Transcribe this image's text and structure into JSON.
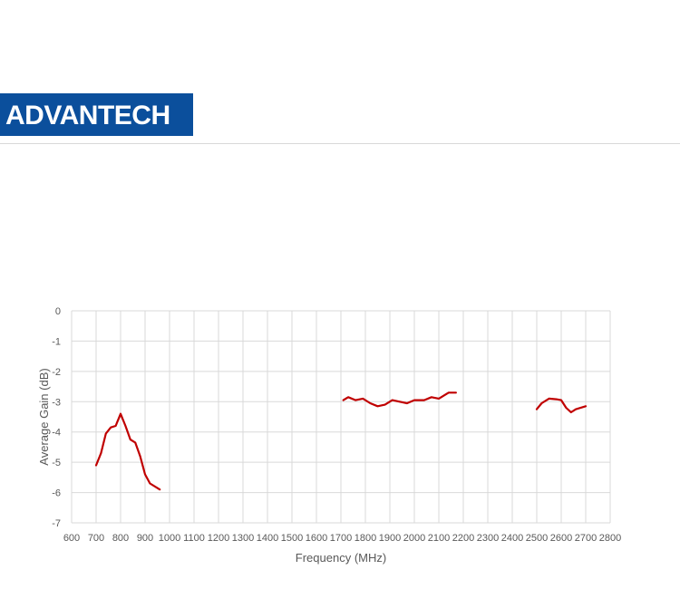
{
  "logo": {
    "text": "ADVANTECH",
    "color": "#0b4f9c"
  },
  "chart_data": {
    "type": "line",
    "title": "",
    "xlabel": "Frequency (MHz)",
    "ylabel": "Average Gain (dB)",
    "xlim": [
      600,
      2800
    ],
    "ylim": [
      -7,
      0
    ],
    "xticks": [
      600,
      700,
      800,
      900,
      1000,
      1100,
      1200,
      1300,
      1400,
      1500,
      1600,
      1700,
      1800,
      1900,
      2000,
      2100,
      2200,
      2300,
      2400,
      2500,
      2600,
      2700,
      2800
    ],
    "yticks": [
      0,
      -1,
      -2,
      -3,
      -4,
      -5,
      -6,
      -7
    ],
    "grid": true,
    "line_color": "#c00000",
    "series": [
      {
        "x": [
          700,
          720,
          740,
          760,
          780,
          800,
          820,
          840,
          860,
          880,
          900,
          920,
          960
        ],
        "y": [
          -5.1,
          -4.7,
          -4.05,
          -3.85,
          -3.8,
          -3.4,
          -3.8,
          -4.25,
          -4.35,
          -4.8,
          -5.4,
          -5.7,
          -5.9
        ]
      },
      {
        "x": [
          1710,
          1730,
          1760,
          1790,
          1820,
          1850,
          1880,
          1910,
          1940,
          1970,
          2000,
          2040,
          2070,
          2100,
          2140,
          2170
        ],
        "y": [
          -2.95,
          -2.85,
          -2.95,
          -2.9,
          -3.05,
          -3.15,
          -3.1,
          -2.95,
          -3.0,
          -3.05,
          -2.95,
          -2.95,
          -2.85,
          -2.9,
          -2.7,
          -2.7
        ]
      },
      {
        "x": [
          2500,
          2520,
          2550,
          2580,
          2600,
          2620,
          2640,
          2660,
          2700
        ],
        "y": [
          -3.25,
          -3.05,
          -2.9,
          -2.92,
          -2.95,
          -3.2,
          -3.35,
          -3.25,
          -3.15
        ]
      }
    ]
  }
}
